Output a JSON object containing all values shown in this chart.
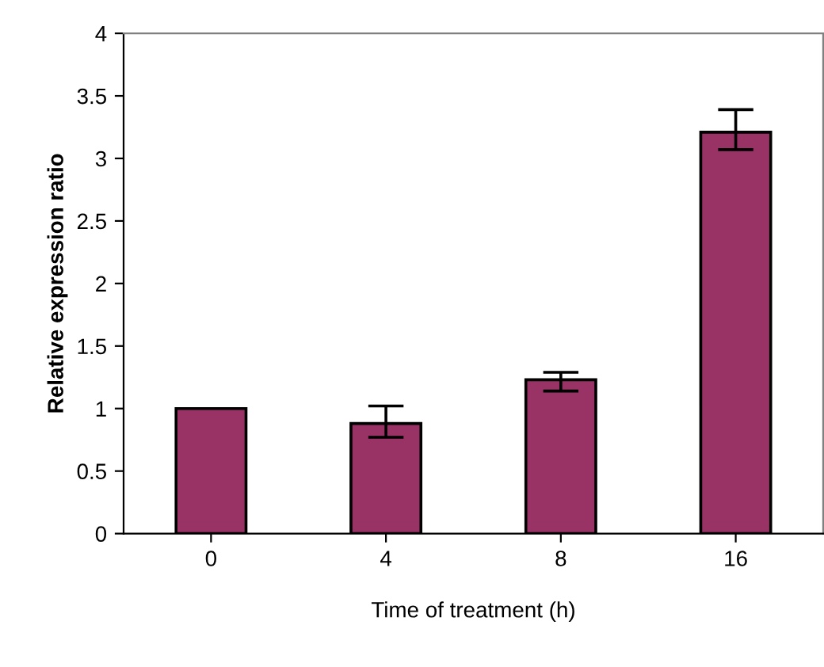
{
  "chart_data": {
    "type": "bar",
    "xlabel": "Time of treatment (h)",
    "ylabel": "Relative expression ratio",
    "categories": [
      "0",
      "4",
      "8",
      "16"
    ],
    "values": [
      1.0,
      0.88,
      1.23,
      3.21
    ],
    "errors": [
      null,
      [
        0.77,
        1.02
      ],
      [
        1.14,
        1.29
      ],
      [
        3.07,
        3.39
      ]
    ],
    "color": "#993366",
    "ylim": [
      0,
      4
    ],
    "yticks": [
      0,
      0.5,
      1,
      1.5,
      2,
      2.5,
      3,
      3.5,
      4
    ],
    "grid": false
  }
}
